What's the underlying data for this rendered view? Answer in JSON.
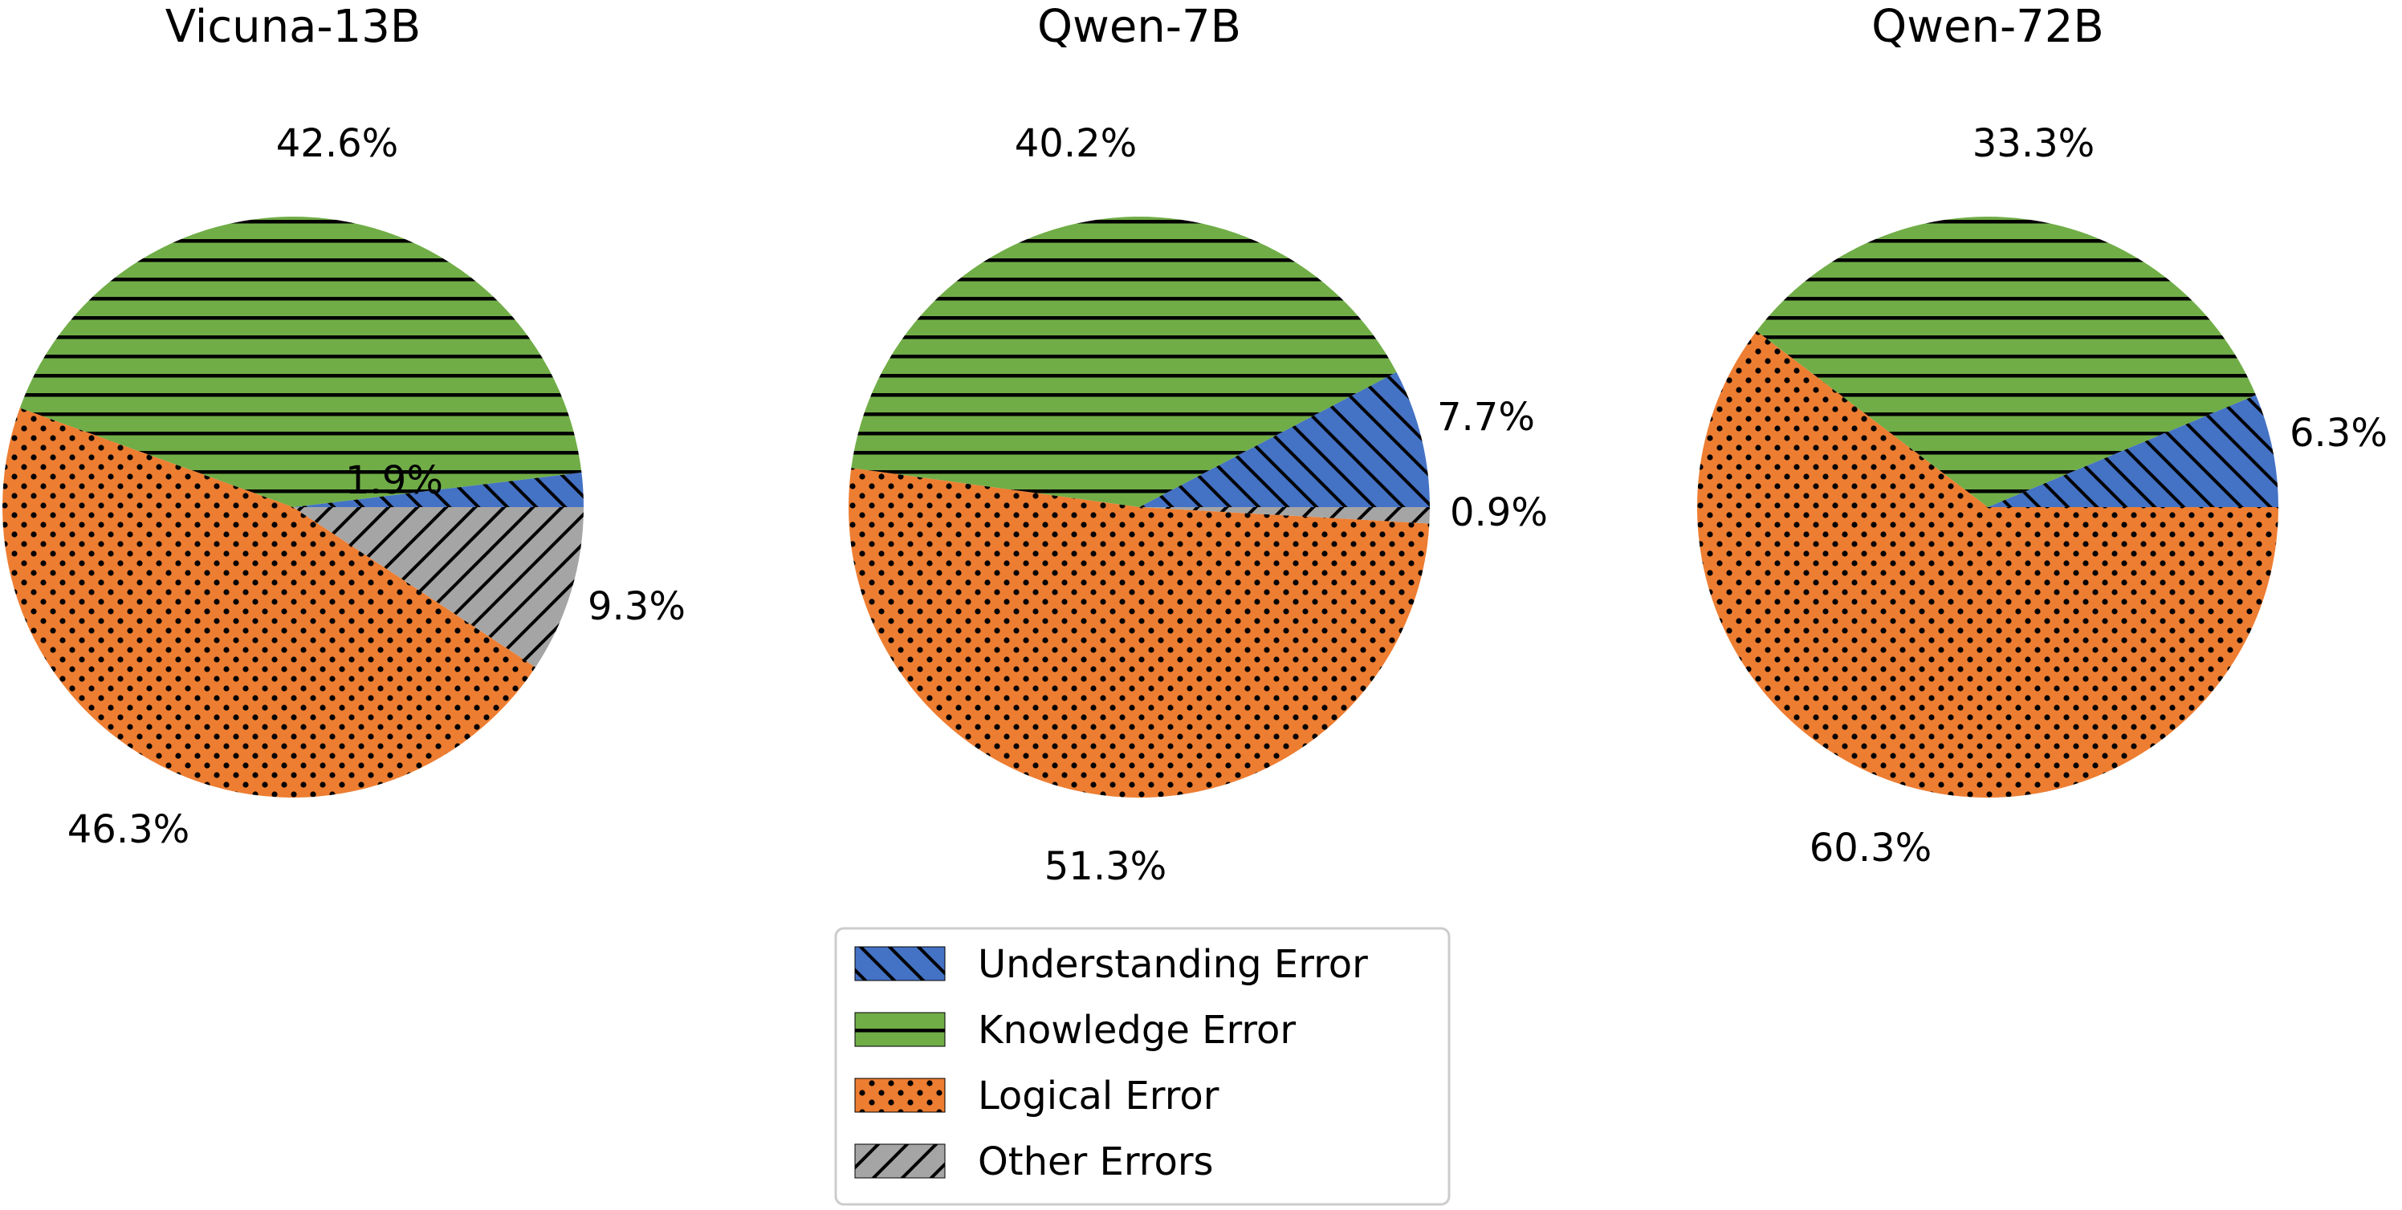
{
  "chart_data": [
    {
      "type": "pie",
      "title": "Vicuna-13B",
      "slices": [
        {
          "label": "Understanding Error",
          "value": 1.9,
          "text": "1.9%"
        },
        {
          "label": "Knowledge Error",
          "value": 42.6,
          "text": "42.6%"
        },
        {
          "label": "Logical Error",
          "value": 46.3,
          "text": "46.3%"
        },
        {
          "label": "Other Errors",
          "value": 9.3,
          "text": "9.3%"
        }
      ]
    },
    {
      "type": "pie",
      "title": "Qwen-7B",
      "slices": [
        {
          "label": "Understanding Error",
          "value": 7.7,
          "text": "7.7%"
        },
        {
          "label": "Knowledge Error",
          "value": 40.2,
          "text": "40.2%"
        },
        {
          "label": "Logical Error",
          "value": 51.3,
          "text": "51.3%"
        },
        {
          "label": "Other Errors",
          "value": 0.9,
          "text": "0.9%"
        }
      ]
    },
    {
      "type": "pie",
      "title": "Qwen-72B",
      "slices": [
        {
          "label": "Understanding Error",
          "value": 6.3,
          "text": "6.3%"
        },
        {
          "label": "Knowledge Error",
          "value": 33.3,
          "text": "33.3%"
        },
        {
          "label": "Logical Error",
          "value": 60.3,
          "text": "60.3%"
        }
      ]
    }
  ],
  "legend": {
    "placement": "bottom-center",
    "items": [
      {
        "label": "Understanding Error",
        "color": "#4472c4",
        "pattern": "backslash-hatch"
      },
      {
        "label": "Knowledge Error",
        "color": "#70ad47",
        "pattern": "horizontal-lines"
      },
      {
        "label": "Logical Error",
        "color": "#ed7d31",
        "pattern": "dots"
      },
      {
        "label": "Other Errors",
        "color": "#a5a5a5",
        "pattern": "slash-hatch"
      }
    ]
  },
  "colors": {
    "Understanding Error": "#4472c4",
    "Knowledge Error": "#70ad47",
    "Logical Error": "#ed7d31",
    "Other Errors": "#a5a5a5"
  }
}
